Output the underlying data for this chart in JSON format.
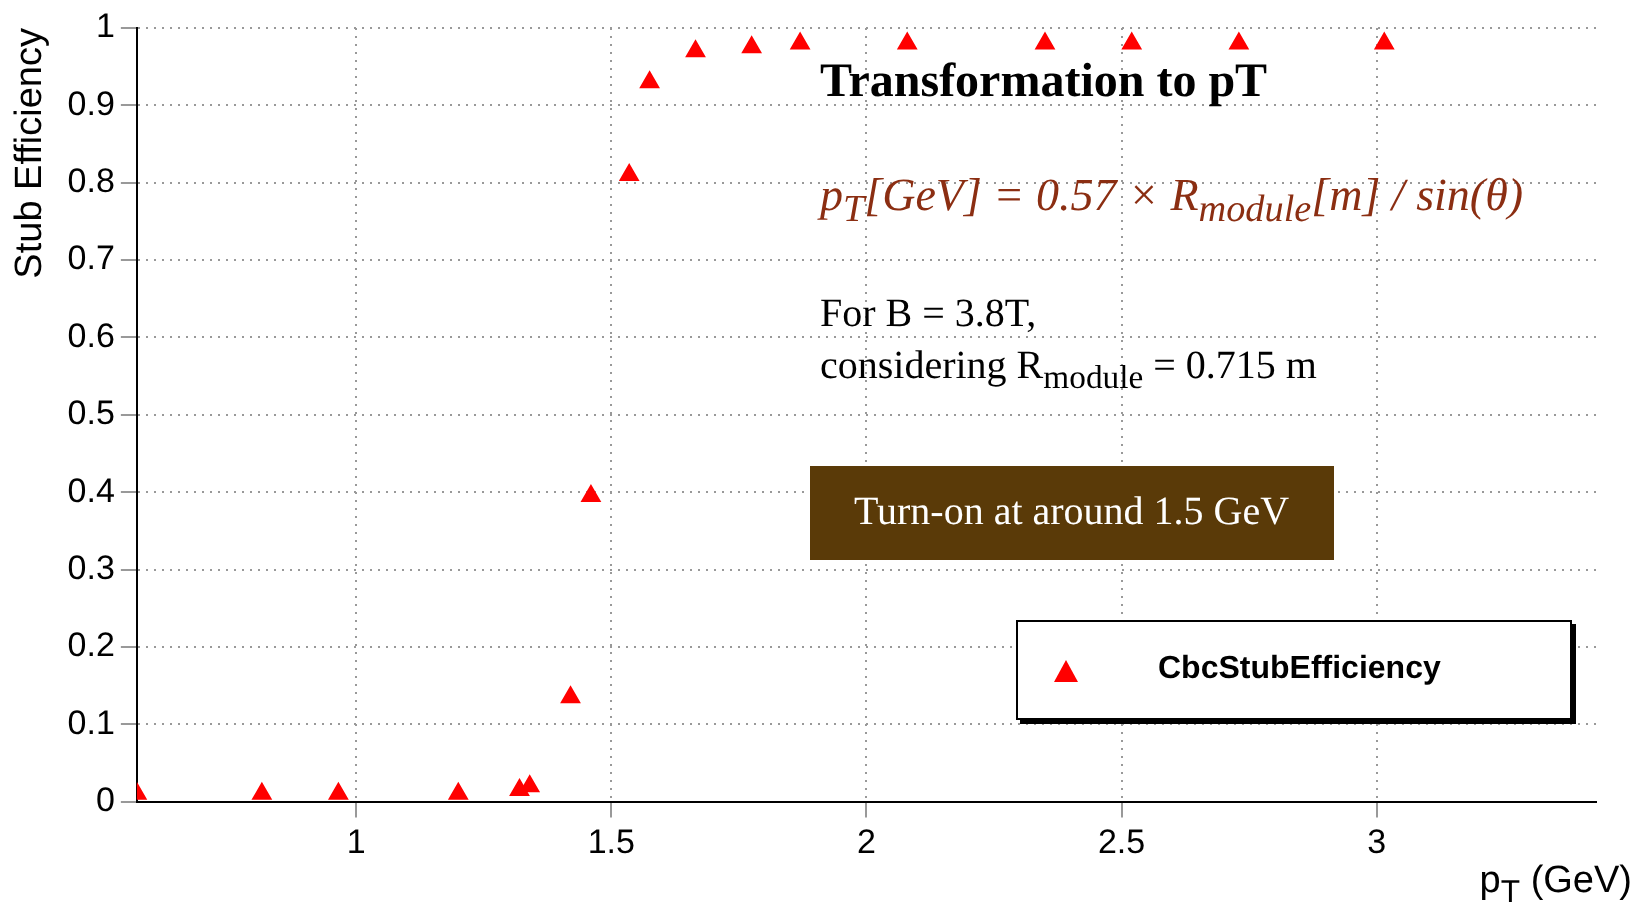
{
  "chart_data": {
    "type": "scatter",
    "xlabel": "p$_{T}$ (GeV)",
    "ylabel": "Stub Efficiency",
    "xlim": [
      0.57,
      3.43
    ],
    "xticks": [
      1,
      1.5,
      2,
      2.5,
      3
    ],
    "ylim": [
      0,
      1
    ],
    "yticks": [
      0,
      0.1,
      0.2,
      0.3,
      0.4,
      0.5,
      0.6,
      0.7,
      0.8,
      0.9,
      1
    ],
    "grid": true,
    "legend": "bottom right",
    "marker": "triangle",
    "series": [
      {
        "name": "CbcStubEfficiency",
        "color": "#ff0000",
        "x": [
          0.57,
          0.815,
          0.965,
          1.2,
          1.32,
          1.34,
          1.42,
          1.46,
          1.535,
          1.575,
          1.665,
          1.775,
          1.87,
          2.08,
          2.35,
          2.52,
          2.73,
          3.015
        ],
        "values": [
          0.01,
          0.01,
          0.01,
          0.01,
          0.015,
          0.02,
          0.135,
          0.395,
          0.81,
          0.93,
          0.97,
          0.975,
          0.98,
          0.98,
          0.98,
          0.98,
          0.98,
          0.98
        ]
      }
    ],
    "annotations": [
      "Transformation to pT",
      "p$_{T}$[GeV] = 0.57 × R$_{module}$[m] / sin(θ)",
      "For B = 3.8T,",
      "considering R$_{module}$ = 0.715 m",
      "Turn-on at around 1.5 GeV"
    ]
  }
}
